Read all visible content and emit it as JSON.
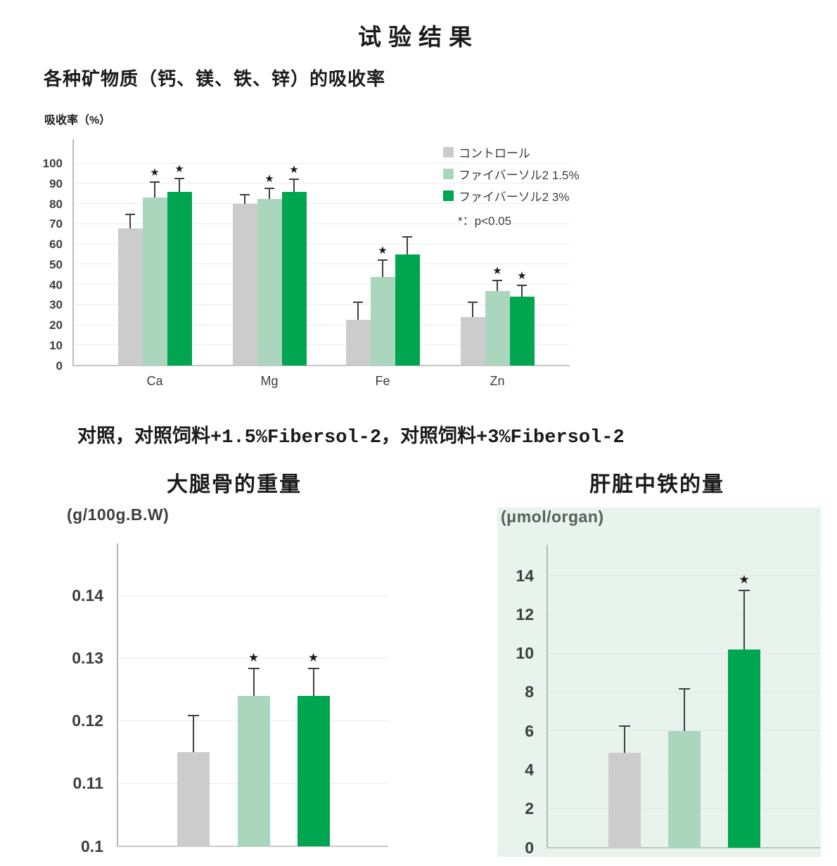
{
  "page": {
    "title": "试验结果",
    "section_title": "各种矿物质（钙、镁、铁、锌）的吸收率",
    "group_caption": "对照，对照饲料+1.5%Fibersol-2，对照饲料+3%Fibersol-2"
  },
  "colors": {
    "control": "#cccccc",
    "fibersol_1_5": "#aad6be",
    "fibersol_3": "#00a54f",
    "liver_chart_bg": "#e8f3ee",
    "grid": "#ececec",
    "grid_on_green": "#dcebe4",
    "axis_gray": "#bdbdbd",
    "baseline_gray": "#c6c6c6",
    "error_bar": "#3f3f3f",
    "star": "#1a1a1a"
  },
  "icons": {
    "significance_star": "★"
  },
  "legend": {
    "items": [
      {
        "label": "コントロール",
        "color_key": "control"
      },
      {
        "label": "ファイバーソル2 1.5%",
        "color_key": "fibersol_1_5"
      },
      {
        "label": "ファイバーソル2 3%",
        "color_key": "fibersol_3"
      }
    ],
    "note": "*：p<0.05"
  },
  "chart_data": [
    {
      "id": "mineral-absorption",
      "type": "bar",
      "title": "各种矿物质（钙、镁、铁、锌）的吸收率",
      "unit_label": "吸收率（%）",
      "categories": [
        "Ca",
        "Mg",
        "Fe",
        "Zn"
      ],
      "ylim": [
        0,
        112
      ],
      "ytick_values": [
        0,
        10,
        20,
        30,
        40,
        50,
        60,
        70,
        80,
        90,
        100
      ],
      "ytick_labels": [
        "0",
        "10",
        "20",
        "30",
        "40",
        "50",
        "60",
        "70",
        "80",
        "90",
        "100"
      ],
      "grid": true,
      "legend_position": "top-right",
      "significance_note": "*：p<0.05",
      "series": [
        {
          "name": "コントロール",
          "color_key": "control",
          "values": [
            68,
            80,
            22.5,
            24
          ],
          "errors_plus": [
            7,
            5,
            9,
            7.5
          ],
          "significant": [
            false,
            false,
            false,
            false
          ]
        },
        {
          "name": "ファイバーソル2 1.5%",
          "color_key": "fibersol_1_5",
          "values": [
            83,
            82.5,
            44,
            37
          ],
          "errors_plus": [
            8,
            5.5,
            8.5,
            5.5
          ],
          "significant": [
            true,
            true,
            true,
            true
          ]
        },
        {
          "name": "ファイバーソル2 3%",
          "color_key": "fibersol_3",
          "values": [
            86,
            86,
            55,
            34
          ],
          "errors_plus": [
            7,
            6.5,
            9,
            6
          ],
          "significant": [
            true,
            true,
            false,
            true
          ]
        }
      ]
    },
    {
      "id": "femur-weight",
      "type": "bar",
      "title": "大腿骨的重量",
      "unit_label": "(g/100g.B.W)",
      "categories": [
        "コントロール",
        "ファイバーソル2 1.5%",
        "ファイバーソル2 3%"
      ],
      "ylim": [
        0.1,
        0.1484
      ],
      "ytick_values": [
        0.1,
        0.11,
        0.12,
        0.13,
        0.14
      ],
      "ytick_labels": [
        "0.1",
        "0.11",
        "0.12",
        "0.13",
        "0.14"
      ],
      "grid": true,
      "values": [
        0.115,
        0.124,
        0.124
      ],
      "errors_plus": [
        0.006,
        0.0045,
        0.0045
      ],
      "significant": [
        false,
        true,
        true
      ]
    },
    {
      "id": "liver-iron",
      "type": "bar",
      "title": "肝脏中铁的量",
      "unit_label": "(μmol/organ)",
      "categories": [
        "コントロール",
        "ファイバーソル2 1.5%",
        "ファイバーソル2 3%"
      ],
      "ylim": [
        0,
        15.6
      ],
      "ytick_values": [
        0,
        2,
        4,
        6,
        8,
        10,
        12,
        14
      ],
      "ytick_labels": [
        "0",
        "2",
        "4",
        "6",
        "8",
        "10",
        "12",
        "14"
      ],
      "grid": true,
      "values": [
        4.9,
        6.0,
        10.2
      ],
      "errors_plus": [
        1.4,
        2.2,
        3.1
      ],
      "significant": [
        false,
        false,
        true
      ]
    }
  ]
}
